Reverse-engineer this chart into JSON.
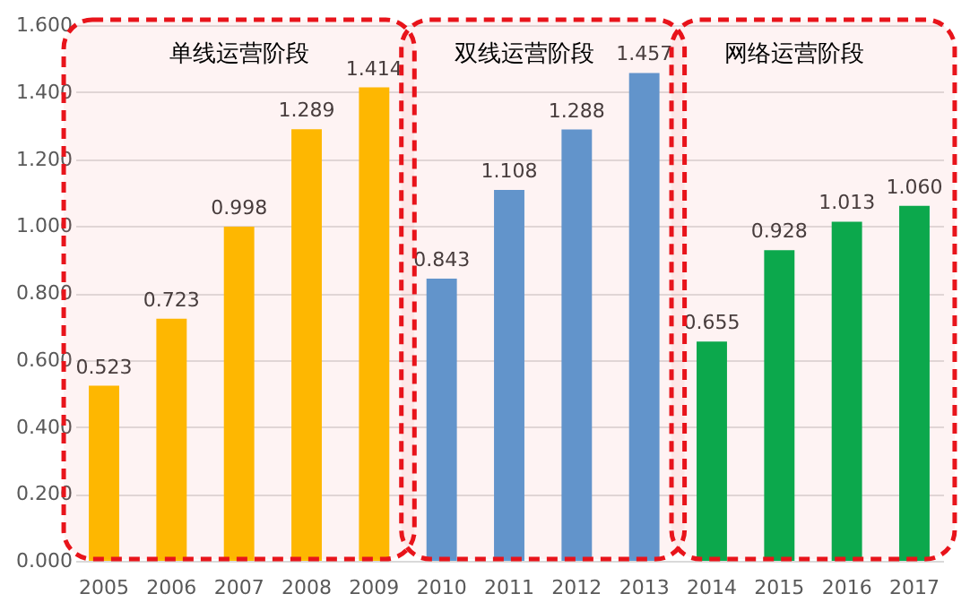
{
  "chart_data": {
    "type": "bar",
    "categories": [
      "2005",
      "2006",
      "2007",
      "2008",
      "2009",
      "2010",
      "2011",
      "2012",
      "2013",
      "2014",
      "2015",
      "2016",
      "2017"
    ],
    "values": [
      0.523,
      0.723,
      0.998,
      1.289,
      1.414,
      0.843,
      1.108,
      1.288,
      1.457,
      0.655,
      0.928,
      1.013,
      1.06
    ],
    "colors": [
      "#ffc000",
      "#ffc000",
      "#ffc000",
      "#ffc000",
      "#ffc000",
      "#5b9bd5",
      "#5b9bd5",
      "#5b9bd5",
      "#5b9bd5",
      "#00b050",
      "#00b050",
      "#00b050",
      "#00b050"
    ],
    "value_labels": [
      "0.523",
      "0.723",
      "0.998",
      "1.289",
      "1.414",
      "0.843",
      "1.108",
      "1.288",
      "1.457",
      "0.655",
      "0.928",
      "1.013",
      "1.060"
    ],
    "ylim": [
      0,
      1.6
    ],
    "yticks": [
      {
        "value": 0,
        "label": "0.000"
      },
      {
        "value": 0.2,
        "label": "0.200"
      },
      {
        "value": 0.4,
        "label": "0.400"
      },
      {
        "value": 0.6,
        "label": "0.600"
      },
      {
        "value": 0.8,
        "label": "0.800"
      },
      {
        "value": 1.0,
        "label": "1.000"
      },
      {
        "value": 1.2,
        "label": "1.200"
      },
      {
        "value": 1.4,
        "label": "1.400"
      },
      {
        "value": 1.6,
        "label": "1.600"
      }
    ],
    "bands": [
      {
        "axis": "x",
        "from": "2005",
        "to": "2009",
        "label": "单线运营阶段",
        "color": "#e8141b"
      },
      {
        "axis": "x",
        "from": "2010",
        "to": "2013",
        "label": "双线运营阶段",
        "color": "#e8141b"
      },
      {
        "axis": "x",
        "from": "2014",
        "to": "2017",
        "label": "网络运营阶段",
        "color": "#e8141b"
      }
    ],
    "grid": "y"
  }
}
